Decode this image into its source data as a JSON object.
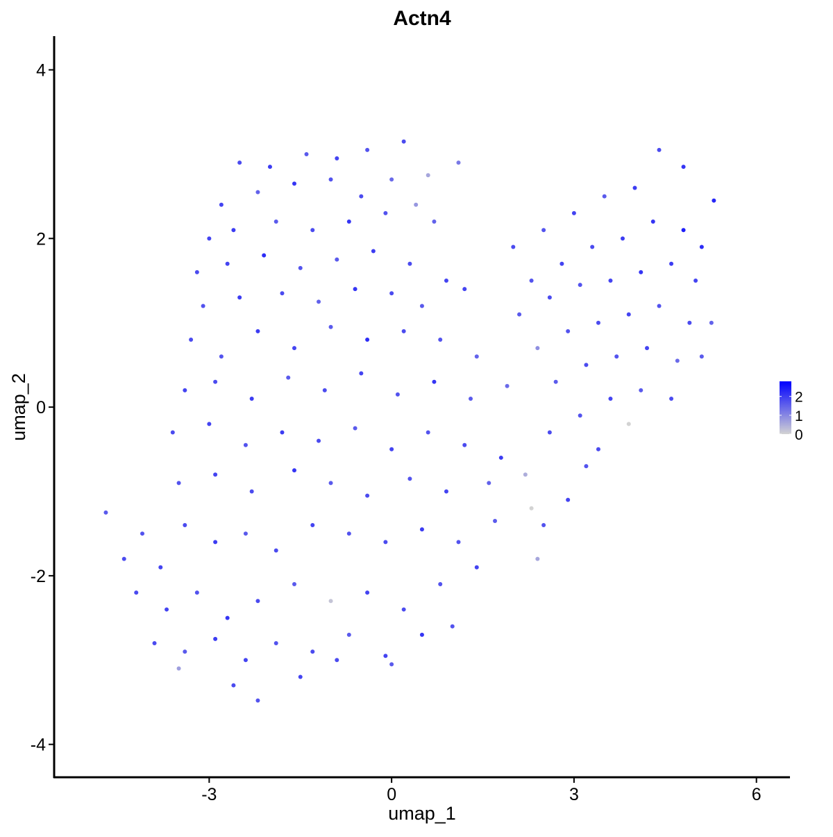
{
  "chart_data": {
    "type": "scatter",
    "title": "Actn4",
    "xlabel": "umap_1",
    "ylabel": "umap_2",
    "xlim": [
      -5.55,
      6.54
    ],
    "xticks": [
      -3,
      0,
      3,
      6
    ],
    "ylim": [
      -4.39,
      4.4
    ],
    "yticks": [
      -4,
      -2,
      0,
      2,
      4
    ],
    "color_low": "#d3d3d3",
    "color_high": "#0000ff",
    "colorbar_lim": [
      0,
      2.8
    ],
    "colorbar_ticks": [
      0,
      1,
      2
    ],
    "points": [
      [
        -2.5,
        2.9,
        1.8
      ],
      [
        -2.0,
        2.85,
        2.0
      ],
      [
        -1.4,
        3.0,
        1.6
      ],
      [
        -0.9,
        2.95,
        1.9
      ],
      [
        -0.4,
        3.05,
        1.7
      ],
      [
        0.2,
        3.15,
        1.8
      ],
      [
        0.6,
        2.75,
        0.6
      ],
      [
        1.1,
        2.9,
        1.2
      ],
      [
        -2.8,
        2.4,
        1.9
      ],
      [
        -2.2,
        2.55,
        1.5
      ],
      [
        -1.6,
        2.65,
        2.1
      ],
      [
        -1.0,
        2.7,
        1.7
      ],
      [
        -0.5,
        2.5,
        1.8
      ],
      [
        0.0,
        2.7,
        1.4
      ],
      [
        0.4,
        2.4,
        0.8
      ],
      [
        -3.0,
        2.0,
        1.9
      ],
      [
        -2.6,
        2.1,
        2.0
      ],
      [
        -1.9,
        2.2,
        1.6
      ],
      [
        -1.3,
        2.1,
        1.8
      ],
      [
        -0.7,
        2.2,
        2.1
      ],
      [
        -0.1,
        2.3,
        1.7
      ],
      [
        0.7,
        2.2,
        1.5
      ],
      [
        -3.2,
        1.6,
        1.8
      ],
      [
        -2.7,
        1.7,
        1.9
      ],
      [
        -2.1,
        1.8,
        2.2
      ],
      [
        -1.5,
        1.65,
        1.7
      ],
      [
        -0.9,
        1.75,
        1.6
      ],
      [
        -0.3,
        1.85,
        2.0
      ],
      [
        0.3,
        1.7,
        1.8
      ],
      [
        0.9,
        1.5,
        1.9
      ],
      [
        -3.1,
        1.2,
        1.7
      ],
      [
        -2.5,
        1.3,
        2.0
      ],
      [
        -1.8,
        1.35,
        1.8
      ],
      [
        -1.2,
        1.25,
        1.5
      ],
      [
        -0.6,
        1.4,
        2.1
      ],
      [
        0.0,
        1.35,
        1.8
      ],
      [
        0.5,
        1.2,
        1.6
      ],
      [
        1.2,
        1.4,
        1.9
      ],
      [
        -3.3,
        0.8,
        1.8
      ],
      [
        -2.8,
        0.6,
        1.7
      ],
      [
        -2.2,
        0.9,
        2.0
      ],
      [
        -1.6,
        0.7,
        1.9
      ],
      [
        -1.0,
        0.95,
        1.6
      ],
      [
        -0.4,
        0.8,
        2.2
      ],
      [
        0.2,
        0.9,
        1.8
      ],
      [
        0.8,
        0.8,
        1.7
      ],
      [
        1.4,
        0.6,
        1.5
      ],
      [
        -3.4,
        0.2,
        1.9
      ],
      [
        -2.9,
        0.3,
        1.8
      ],
      [
        -2.3,
        0.1,
        2.0
      ],
      [
        -1.7,
        0.35,
        1.6
      ],
      [
        -1.1,
        0.2,
        1.8
      ],
      [
        -0.5,
        0.4,
        1.9
      ],
      [
        0.1,
        0.15,
        1.7
      ],
      [
        0.7,
        0.3,
        2.1
      ],
      [
        1.3,
        0.1,
        1.6
      ],
      [
        1.9,
        0.25,
        1.4
      ],
      [
        -3.6,
        -0.3,
        1.8
      ],
      [
        -3.0,
        -0.2,
        1.9
      ],
      [
        -2.4,
        -0.45,
        1.7
      ],
      [
        -1.8,
        -0.3,
        2.0
      ],
      [
        -1.2,
        -0.4,
        1.8
      ],
      [
        -0.6,
        -0.25,
        1.6
      ],
      [
        0.0,
        -0.5,
        1.9
      ],
      [
        0.6,
        -0.3,
        1.7
      ],
      [
        1.2,
        -0.45,
        1.8
      ],
      [
        1.8,
        -0.6,
        2.0
      ],
      [
        -3.5,
        -0.9,
        1.7
      ],
      [
        -2.9,
        -0.8,
        1.9
      ],
      [
        -2.3,
        -1.0,
        1.8
      ],
      [
        -1.6,
        -0.75,
        2.1
      ],
      [
        -1.0,
        -0.9,
        1.6
      ],
      [
        -0.4,
        -1.05,
        1.8
      ],
      [
        0.3,
        -0.85,
        1.7
      ],
      [
        0.9,
        -1.0,
        1.9
      ],
      [
        1.6,
        -0.9,
        1.5
      ],
      [
        2.2,
        -0.8,
        0.5
      ],
      [
        -4.7,
        -1.25,
        1.6
      ],
      [
        -4.4,
        -1.8,
        1.8
      ],
      [
        -4.1,
        -1.5,
        1.7
      ],
      [
        -3.8,
        -1.9,
        1.9
      ],
      [
        -3.4,
        -1.4,
        1.8
      ],
      [
        -2.9,
        -1.6,
        2.0
      ],
      [
        -2.4,
        -1.5,
        1.6
      ],
      [
        -1.9,
        -1.7,
        1.8
      ],
      [
        -1.3,
        -1.4,
        1.9
      ],
      [
        -0.7,
        -1.5,
        1.7
      ],
      [
        -0.1,
        -1.6,
        1.8
      ],
      [
        0.5,
        -1.45,
        2.0
      ],
      [
        1.1,
        -1.6,
        1.7
      ],
      [
        1.7,
        -1.35,
        1.6
      ],
      [
        2.3,
        -1.2,
        0.0
      ],
      [
        -4.2,
        -2.2,
        1.8
      ],
      [
        -3.7,
        -2.4,
        1.9
      ],
      [
        -3.2,
        -2.2,
        1.7
      ],
      [
        -2.7,
        -2.5,
        2.1
      ],
      [
        -2.2,
        -2.3,
        1.8
      ],
      [
        -1.6,
        -2.1,
        1.6
      ],
      [
        -1.0,
        -2.3,
        0.2
      ],
      [
        -0.4,
        -2.2,
        1.9
      ],
      [
        0.2,
        -2.4,
        1.8
      ],
      [
        0.8,
        -2.1,
        1.7
      ],
      [
        1.4,
        -1.9,
        1.9
      ],
      [
        -3.9,
        -2.8,
        1.8
      ],
      [
        -3.4,
        -2.9,
        1.6
      ],
      [
        -2.9,
        -2.75,
        2.0
      ],
      [
        -2.4,
        -3.0,
        1.9
      ],
      [
        -1.9,
        -2.8,
        1.7
      ],
      [
        -1.3,
        -2.9,
        1.8
      ],
      [
        -0.7,
        -2.7,
        1.6
      ],
      [
        -0.1,
        -2.95,
        1.9
      ],
      [
        0.5,
        -2.7,
        2.1
      ],
      [
        1.0,
        -2.6,
        1.7
      ],
      [
        -3.5,
        -3.1,
        0.7
      ],
      [
        -2.6,
        -3.3,
        1.8
      ],
      [
        -2.2,
        -3.48,
        1.7
      ],
      [
        -1.5,
        -3.2,
        1.9
      ],
      [
        -0.9,
        -3.0,
        1.8
      ],
      [
        0.0,
        -3.05,
        1.6
      ],
      [
        2.0,
        1.9,
        1.8
      ],
      [
        2.5,
        2.1,
        1.7
      ],
      [
        3.0,
        2.3,
        1.9
      ],
      [
        3.5,
        2.5,
        1.6
      ],
      [
        4.0,
        2.6,
        2.0
      ],
      [
        4.4,
        3.05,
        1.8
      ],
      [
        4.8,
        2.85,
        2.1
      ],
      [
        5.3,
        2.45,
        2.3
      ],
      [
        2.3,
        1.5,
        1.7
      ],
      [
        2.8,
        1.7,
        1.9
      ],
      [
        3.3,
        1.9,
        1.8
      ],
      [
        3.8,
        2.0,
        2.0
      ],
      [
        4.3,
        2.2,
        2.1
      ],
      [
        4.8,
        2.1,
        2.4
      ],
      [
        5.1,
        1.9,
        2.2
      ],
      [
        2.1,
        1.1,
        1.6
      ],
      [
        2.6,
        1.3,
        1.8
      ],
      [
        3.1,
        1.45,
        1.7
      ],
      [
        3.6,
        1.5,
        1.9
      ],
      [
        4.1,
        1.6,
        2.1
      ],
      [
        4.6,
        1.7,
        2.0
      ],
      [
        5.0,
        1.5,
        1.9
      ],
      [
        2.4,
        0.7,
        0.9
      ],
      [
        2.9,
        0.9,
        1.7
      ],
      [
        3.4,
        1.0,
        1.8
      ],
      [
        3.9,
        1.1,
        1.9
      ],
      [
        4.4,
        1.2,
        1.7
      ],
      [
        4.9,
        1.0,
        1.8
      ],
      [
        5.26,
        1.0,
        1.5
      ],
      [
        2.7,
        0.3,
        1.6
      ],
      [
        3.2,
        0.5,
        1.8
      ],
      [
        3.7,
        0.6,
        1.7
      ],
      [
        4.2,
        0.7,
        1.9
      ],
      [
        4.7,
        0.55,
        1.4
      ],
      [
        5.1,
        0.6,
        1.6
      ],
      [
        2.6,
        -0.3,
        1.8
      ],
      [
        3.1,
        -0.1,
        1.7
      ],
      [
        3.6,
        0.1,
        1.9
      ],
      [
        4.1,
        0.2,
        1.6
      ],
      [
        4.6,
        0.1,
        1.8
      ],
      [
        3.2,
        -0.7,
        1.7
      ],
      [
        2.9,
        -1.1,
        1.9
      ],
      [
        3.4,
        -0.5,
        1.8
      ],
      [
        3.9,
        -0.2,
        0.0
      ],
      [
        2.5,
        -1.4,
        1.7
      ],
      [
        2.4,
        -1.8,
        0.6
      ]
    ]
  }
}
